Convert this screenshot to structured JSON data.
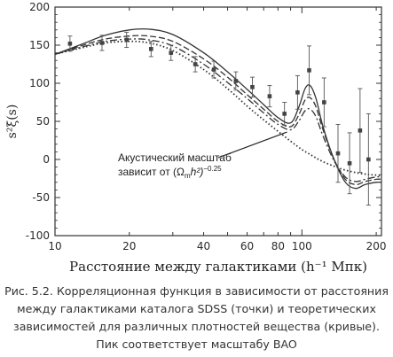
{
  "chart_data": {
    "type": "line",
    "xscale": "log",
    "xlim": [
      10,
      210
    ],
    "ylim": [
      -100,
      200
    ],
    "xticks": [
      10,
      20,
      40,
      60,
      80,
      100,
      200
    ],
    "yticks": [
      -100,
      -50,
      0,
      50,
      100,
      150,
      200
    ],
    "xlabel": "Расстояние между галактиками (h⁻¹ Мпк)",
    "ylabel": "s²ξ(s)",
    "annotation": {
      "line1": "Акустический масштаб",
      "line2": "зависит от (Ω",
      "sub": "m",
      "line2b": "h²)",
      "sup": "−0.25",
      "arrow_target": [
        87,
        36
      ]
    },
    "points": [
      {
        "x": 11.5,
        "y": 152,
        "err": 10
      },
      {
        "x": 15.5,
        "y": 153,
        "err": 10
      },
      {
        "x": 19.5,
        "y": 157,
        "err": 10
      },
      {
        "x": 24.5,
        "y": 145,
        "err": 10
      },
      {
        "x": 29.5,
        "y": 140,
        "err": 10
      },
      {
        "x": 37.0,
        "y": 125,
        "err": 10
      },
      {
        "x": 44.0,
        "y": 118,
        "err": 11
      },
      {
        "x": 54.0,
        "y": 103,
        "err": 12
      },
      {
        "x": 63.0,
        "y": 95,
        "err": 13
      },
      {
        "x": 74.0,
        "y": 83,
        "err": 14
      },
      {
        "x": 85.0,
        "y": 60,
        "err": 15
      },
      {
        "x": 96.0,
        "y": 88,
        "err": 22
      },
      {
        "x": 107.0,
        "y": 117,
        "err": 32
      },
      {
        "x": 123.0,
        "y": 75,
        "err": 32
      },
      {
        "x": 140.0,
        "y": 8,
        "err": 38
      },
      {
        "x": 156.0,
        "y": -5,
        "err": 40
      },
      {
        "x": 172.0,
        "y": 38,
        "err": 55
      },
      {
        "x": 186.0,
        "y": 0,
        "err": 60
      }
    ],
    "series": [
      {
        "style": "solid",
        "x": [
          10,
          13,
          16,
          20,
          24,
          30,
          40,
          50,
          60,
          70,
          80,
          90,
          97,
          103,
          108,
          114,
          122,
          135,
          150,
          165,
          180,
          200,
          210
        ],
        "y": [
          138,
          152,
          163,
          170,
          171,
          164,
          140,
          115,
          92,
          72,
          55,
          48,
          68,
          93,
          97,
          80,
          42,
          0,
          -30,
          -38,
          -33,
          -30,
          -30
        ]
      },
      {
        "style": "dashed",
        "x": [
          10,
          13,
          16,
          20,
          24,
          30,
          40,
          50,
          60,
          70,
          80,
          90,
          97,
          103,
          108,
          114,
          122,
          135,
          150,
          165,
          180,
          200,
          210
        ],
        "y": [
          138,
          150,
          158,
          162,
          162,
          155,
          132,
          108,
          85,
          66,
          50,
          43,
          58,
          78,
          81,
          69,
          38,
          0,
          -26,
          -33,
          -29,
          -26,
          -26
        ]
      },
      {
        "style": "dashdot",
        "x": [
          10,
          13,
          16,
          20,
          24,
          30,
          40,
          50,
          60,
          70,
          80,
          90,
          97,
          103,
          108,
          114,
          122,
          135,
          150,
          165,
          180,
          200,
          210
        ],
        "y": [
          138,
          148,
          155,
          158,
          157,
          149,
          125,
          101,
          80,
          61,
          46,
          39,
          50,
          64,
          66,
          56,
          30,
          -2,
          -23,
          -29,
          -26,
          -23,
          -23
        ]
      },
      {
        "style": "dotted",
        "x": [
          10,
          13,
          16,
          20,
          24,
          30,
          40,
          50,
          60,
          70,
          80,
          90,
          100,
          110,
          120,
          135,
          150,
          170,
          190,
          210
        ],
        "y": [
          138,
          147,
          153,
          155,
          153,
          143,
          118,
          93,
          70,
          52,
          37,
          24,
          13,
          5,
          -2,
          -9,
          -14,
          -18,
          -20,
          -21
        ]
      }
    ]
  },
  "caption": {
    "line1": "Рис. 5.2. Корреляционная функция в зависимости от расстояния",
    "line2": "между галактиками каталога SDSS (точки) и теоретических",
    "line3": "зависимостей для различных плотностей вещества (кривые).",
    "line4": "Пик соответствует масштабу BAO"
  }
}
